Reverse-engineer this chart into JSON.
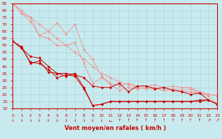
{
  "xlabel": "Vent moyen/en rafales ( km/h )",
  "bg_color": "#c8eaee",
  "grid_color": "#aad8de",
  "xlim": [
    0,
    23
  ],
  "ylim": [
    10,
    85
  ],
  "yticks": [
    10,
    15,
    20,
    25,
    30,
    35,
    40,
    45,
    50,
    55,
    60,
    65,
    70,
    75,
    80,
    85
  ],
  "xticks": [
    0,
    1,
    2,
    3,
    4,
    5,
    6,
    7,
    8,
    9,
    10,
    11,
    12,
    13,
    14,
    15,
    16,
    17,
    18,
    19,
    20,
    21,
    22,
    23
  ],
  "lines": [
    {
      "x": [
        0,
        1,
        2,
        3,
        4,
        5,
        6,
        7,
        8,
        9,
        10,
        11,
        12,
        13,
        14,
        15,
        16,
        17,
        18,
        19,
        20,
        21,
        22,
        23
      ],
      "y": [
        85,
        80,
        75,
        70,
        65,
        60,
        55,
        50,
        45,
        40,
        35,
        32,
        29,
        27,
        25,
        24,
        24,
        23,
        23,
        22,
        22,
        21,
        20,
        19
      ],
      "color": "#ee9999",
      "lw": 0.7
    },
    {
      "x": [
        0,
        1,
        2,
        3,
        4,
        5,
        6,
        7,
        8,
        9,
        10,
        11,
        12,
        13,
        14,
        15,
        16,
        17,
        18,
        19,
        20,
        21,
        22,
        23
      ],
      "y": [
        85,
        78,
        75,
        62,
        65,
        71,
        63,
        70,
        52,
        45,
        33,
        28,
        26,
        28,
        26,
        26,
        27,
        25,
        26,
        25,
        25,
        22,
        20,
        19
      ],
      "color": "#ee9999",
      "lw": 0.7
    },
    {
      "x": [
        0,
        1,
        2,
        3,
        4,
        5,
        6,
        7,
        8,
        9,
        10,
        11,
        12,
        13,
        14,
        15,
        16,
        17,
        18,
        19,
        20,
        21,
        22,
        23
      ],
      "y": [
        85,
        78,
        72,
        62,
        60,
        55,
        55,
        57,
        42,
        28,
        32,
        27,
        23,
        25,
        24,
        25,
        25,
        23,
        24,
        23,
        24,
        21,
        19,
        13
      ],
      "color": "#ee9999",
      "lw": 0.7
    },
    {
      "x": [
        0,
        1,
        2,
        3,
        4,
        5,
        6,
        7,
        8,
        9,
        10,
        11,
        12,
        13,
        14,
        15,
        16,
        17,
        18,
        19,
        20,
        21,
        22,
        23
      ],
      "y": [
        58,
        53,
        47,
        46,
        40,
        35,
        35,
        34,
        32,
        26,
        25,
        25,
        28,
        22,
        26,
        26,
        24,
        25,
        23,
        22,
        20,
        21,
        16,
        13
      ],
      "color": "#cc0000",
      "lw": 0.7
    },
    {
      "x": [
        0,
        1,
        2,
        3,
        4,
        5,
        6,
        7,
        8,
        9,
        10,
        11,
        12,
        13,
        14,
        15,
        16,
        17,
        18,
        19,
        20,
        21,
        22,
        23
      ],
      "y": [
        58,
        54,
        42,
        44,
        36,
        35,
        33,
        35,
        25,
        12,
        13,
        15,
        15,
        15,
        15,
        15,
        15,
        15,
        15,
        15,
        15,
        16,
        16,
        13
      ],
      "color": "#cc0000",
      "lw": 0.7
    },
    {
      "x": [
        0,
        1,
        2,
        3,
        4,
        5,
        6,
        7,
        8,
        9,
        10,
        11,
        12,
        13,
        14,
        15,
        16,
        17,
        18,
        19,
        20,
        21,
        22,
        23
      ],
      "y": [
        58,
        53,
        43,
        42,
        38,
        32,
        34,
        33,
        24,
        12,
        13,
        15,
        15,
        15,
        15,
        15,
        15,
        15,
        15,
        15,
        15,
        15,
        16,
        13
      ],
      "color": "#cc0000",
      "lw": 0.7
    }
  ],
  "marker": "D",
  "markersize": 1.8,
  "tick_fontsize": 4.5,
  "xlabel_fontsize": 6.0,
  "axis_color": "#cc0000",
  "xlabel_fontweight": "bold",
  "wind_dirs": [
    "↓",
    "↓",
    "↓",
    "↓",
    "↓",
    "↓",
    "↓",
    "↓",
    "↓",
    "↓",
    "↓",
    "←",
    "↑",
    "↑",
    "↑",
    "↑",
    "↑",
    "↑",
    "↑",
    "↑",
    "↑",
    "↑",
    "↗",
    "↗"
  ]
}
